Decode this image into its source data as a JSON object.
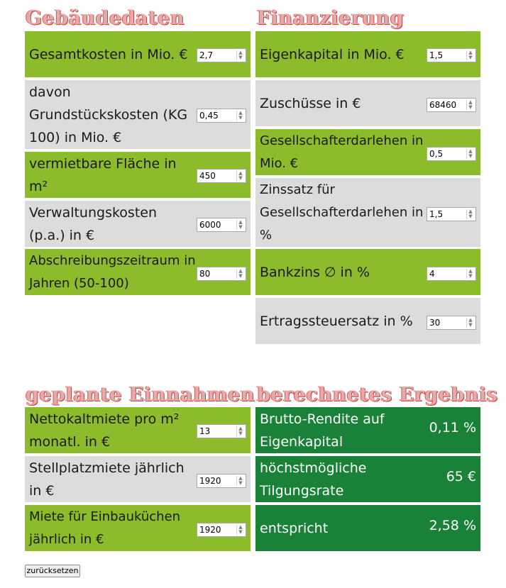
{
  "gebaeude": {
    "title": "Gebäudedaten",
    "rows": [
      {
        "label": "Gesamtkosten in Mio. €",
        "value": "2,7"
      },
      {
        "label": "davon Grundstückskosten (KG 100) in Mio. €",
        "value": "0,45"
      },
      {
        "label": "vermietbare Fläche in m²",
        "value": "450"
      },
      {
        "label": "Verwaltungskosten (p.a.) in €",
        "value": "6000"
      },
      {
        "label": "Abschreibungszeitraum in Jahren (50-100)",
        "value": "80"
      }
    ]
  },
  "finanzierung": {
    "title": "Finanzierung",
    "rows": [
      {
        "label": "Eigenkapital in Mio. €",
        "value": "1,5"
      },
      {
        "label": "Zuschüsse in €",
        "value": "68460"
      },
      {
        "label": "Gesellschafterdarlehen in Mio. €",
        "value": "0,5"
      },
      {
        "label": "Zinssatz für Gesellschafterdarlehen in %",
        "value": "1,5"
      },
      {
        "label": "Bankzins ∅ in %",
        "value": "4"
      },
      {
        "label": "Ertragssteuersatz in %",
        "value": "30"
      }
    ]
  },
  "einnahmen": {
    "title": "geplante Einnahmen",
    "rows": [
      {
        "label": "Nettokaltmiete pro m² monatl. in €",
        "value": "13"
      },
      {
        "label": "Stellplatzmiete jährlich in €",
        "value": "1920"
      },
      {
        "label": "Miete für Einbauküchen jährlich in €",
        "value": "1920"
      }
    ]
  },
  "ergebnis": {
    "title": "berechnetes Ergebnis",
    "rows": [
      {
        "label": "Brutto-Rendite auf Eigenkapital",
        "value": "0,11 %"
      },
      {
        "label": "höchstmögliche Tilgungsrate",
        "value": "65 €"
      },
      {
        "label": "entspricht",
        "value": "2,58 %"
      }
    ]
  },
  "reset_label": "zurücksetzen"
}
